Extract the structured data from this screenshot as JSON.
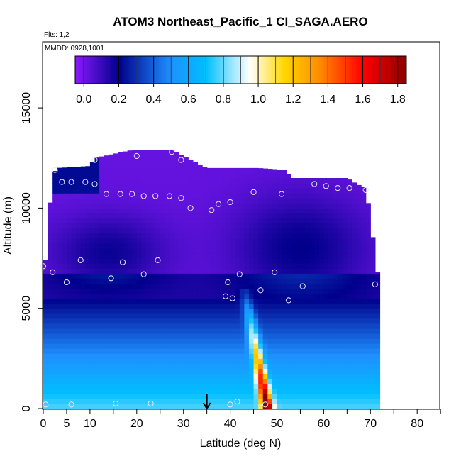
{
  "chart_data": {
    "type": "heatmap",
    "title": "ATOM3 Northeast_Pacific_1 CI_SAGA.AERO",
    "flights_note": "Flts: 1,2",
    "date_note": "MMDD: 0928,1001",
    "xlabel": "Latitude (deg N)",
    "ylabel": "Altitude (m)",
    "xlim": [
      0,
      85
    ],
    "ylim": [
      0,
      17500
    ],
    "x_ticks": [
      0,
      5,
      10,
      20,
      30,
      40,
      50,
      60,
      70,
      80
    ],
    "y_ticks": [
      0,
      5000,
      10000,
      15000
    ],
    "colorbar": {
      "ticks": [
        "0.0",
        "0.2",
        "0.4",
        "0.6",
        "0.8",
        "1.0",
        "1.2",
        "1.4",
        "1.6",
        "1.8"
      ],
      "range": [
        -0.05,
        1.85
      ],
      "stops": [
        "#8c1aff",
        "#00008b",
        "#1e90ff",
        "#00bfff",
        "#ffffff",
        "#ffd700",
        "#ff8c00",
        "#ff0000",
        "#8b0000"
      ]
    },
    "marker_latitude": 35,
    "observations": [
      {
        "lat": 0.5,
        "alt": 200
      },
      {
        "lat": 6,
        "alt": 200
      },
      {
        "lat": 15.5,
        "alt": 250
      },
      {
        "lat": 23,
        "alt": 250
      },
      {
        "lat": 40,
        "alt": 200
      },
      {
        "lat": 41.5,
        "alt": 350
      },
      {
        "lat": 47.5,
        "alt": 200
      },
      {
        "lat": 2,
        "alt": 6800
      },
      {
        "lat": 5,
        "alt": 6300
      },
      {
        "lat": 0,
        "alt": 7100
      },
      {
        "lat": 8,
        "alt": 7400
      },
      {
        "lat": 17,
        "alt": 7300
      },
      {
        "lat": 24.5,
        "alt": 7400
      },
      {
        "lat": 14.5,
        "alt": 6500
      },
      {
        "lat": 21.5,
        "alt": 6700
      },
      {
        "lat": 39.5,
        "alt": 6300
      },
      {
        "lat": 42,
        "alt": 6700
      },
      {
        "lat": 39,
        "alt": 5600
      },
      {
        "lat": 40.5,
        "alt": 5500
      },
      {
        "lat": 46.5,
        "alt": 5900
      },
      {
        "lat": 49.5,
        "alt": 6800
      },
      {
        "lat": 52.5,
        "alt": 5400
      },
      {
        "lat": 55.5,
        "alt": 6100
      },
      {
        "lat": 71,
        "alt": 6200
      },
      {
        "lat": 2.5,
        "alt": 11900
      },
      {
        "lat": 4,
        "alt": 11300
      },
      {
        "lat": 6,
        "alt": 11300
      },
      {
        "lat": 9,
        "alt": 11300
      },
      {
        "lat": 11,
        "alt": 11200
      },
      {
        "lat": 11,
        "alt": 12400
      },
      {
        "lat": 20,
        "alt": 12600
      },
      {
        "lat": 27.5,
        "alt": 12800
      },
      {
        "lat": 29.5,
        "alt": 12400
      },
      {
        "lat": 13.5,
        "alt": 10700
      },
      {
        "lat": 16.5,
        "alt": 10700
      },
      {
        "lat": 19,
        "alt": 10700
      },
      {
        "lat": 21.5,
        "alt": 10600
      },
      {
        "lat": 24,
        "alt": 10600
      },
      {
        "lat": 27,
        "alt": 10600
      },
      {
        "lat": 29.5,
        "alt": 10500
      },
      {
        "lat": 31.5,
        "alt": 10000
      },
      {
        "lat": 36,
        "alt": 9900
      },
      {
        "lat": 37.5,
        "alt": 10200
      },
      {
        "lat": 40,
        "alt": 10300
      },
      {
        "lat": 45,
        "alt": 10800
      },
      {
        "lat": 51,
        "alt": 10700
      },
      {
        "lat": 58,
        "alt": 11200
      },
      {
        "lat": 60.5,
        "alt": 11100
      },
      {
        "lat": 63,
        "alt": 11000
      },
      {
        "lat": 65.5,
        "alt": 11000
      },
      {
        "lat": 69,
        "alt": 10900
      }
    ]
  }
}
